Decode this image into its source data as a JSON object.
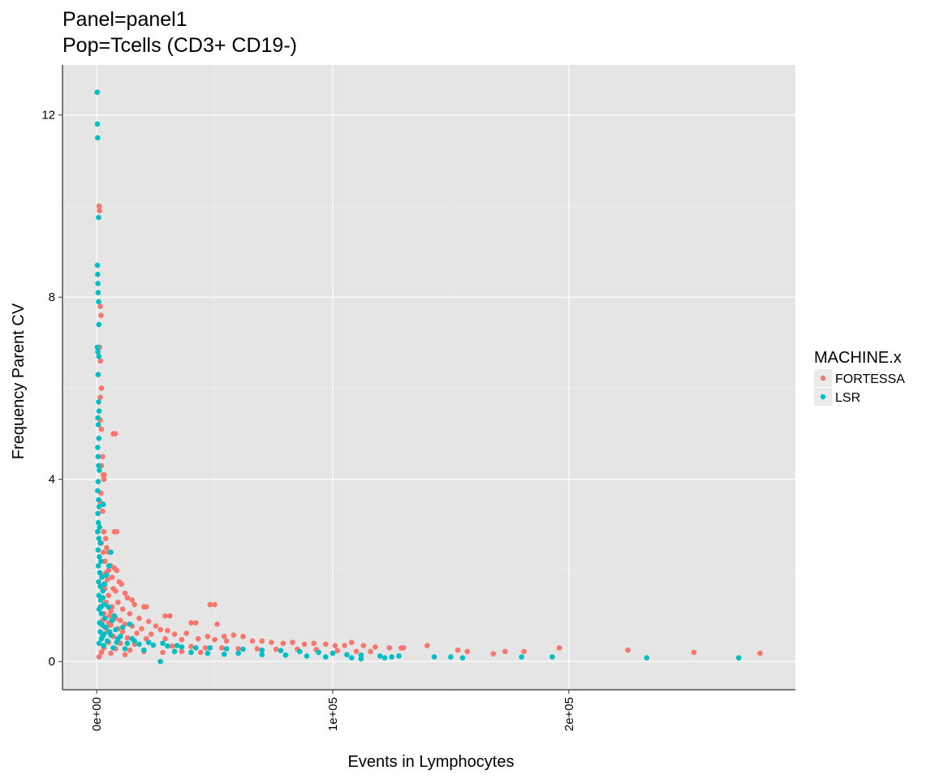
{
  "chart_data": {
    "type": "scatter",
    "title": [
      "Panel=panel1",
      "Pop=Tcells (CD3+ CD19-)"
    ],
    "xlabel": "Events in Lymphocytes",
    "ylabel": "Frequency Parent CV",
    "xlim": [
      -14500,
      296000
    ],
    "ylim": [
      -0.62,
      13.1
    ],
    "x_ticks": [
      0,
      100000,
      200000
    ],
    "x_tick_labels": [
      "0e+00",
      "1e+05",
      "2e+05"
    ],
    "y_ticks": [
      0,
      4,
      8,
      12
    ],
    "y_tick_labels": [
      "0",
      "4",
      "8",
      "12"
    ],
    "grid": true,
    "legend": {
      "title": "MACHINE.x",
      "placement": "right",
      "entries": [
        {
          "label": "FORTESSA",
          "color": "#F8766D"
        },
        {
          "label": "LSR",
          "color": "#00BFC4"
        }
      ]
    },
    "series": [
      {
        "name": "FORTESSA",
        "color": "#F8766D",
        "points": [
          [
            1000,
            10.0
          ],
          [
            1200,
            9.9
          ],
          [
            1500,
            7.8
          ],
          [
            1800,
            7.6
          ],
          [
            1200,
            6.9
          ],
          [
            1600,
            6.6
          ],
          [
            2000,
            6.0
          ],
          [
            1500,
            5.8
          ],
          [
            1500,
            5.3
          ],
          [
            2000,
            5.1
          ],
          [
            7000,
            5.0
          ],
          [
            7800,
            5.0
          ],
          [
            2500,
            4.5
          ],
          [
            2000,
            4.3
          ],
          [
            2800,
            4.1
          ],
          [
            3200,
            4.1
          ],
          [
            3000,
            4.0
          ],
          [
            1800,
            3.7
          ],
          [
            1500,
            3.5
          ],
          [
            2500,
            3.3
          ],
          [
            7500,
            2.85
          ],
          [
            8500,
            2.85
          ],
          [
            3000,
            2.85
          ],
          [
            3800,
            2.7
          ],
          [
            2000,
            2.6
          ],
          [
            4200,
            2.5
          ],
          [
            5000,
            2.4
          ],
          [
            3500,
            2.2
          ],
          [
            6000,
            2.1
          ],
          [
            7500,
            2.05
          ],
          [
            8500,
            2.0
          ],
          [
            5000,
            2.0
          ],
          [
            4000,
            1.95
          ],
          [
            6500,
            1.85
          ],
          [
            9500,
            1.75
          ],
          [
            10500,
            1.7
          ],
          [
            3000,
            1.7
          ],
          [
            7000,
            1.6
          ],
          [
            8000,
            1.55
          ],
          [
            12000,
            1.5
          ],
          [
            5000,
            1.45
          ],
          [
            13000,
            1.4
          ],
          [
            15000,
            1.35
          ],
          [
            4000,
            1.3
          ],
          [
            9000,
            1.3
          ],
          [
            16000,
            1.25
          ],
          [
            20000,
            1.2
          ],
          [
            21000,
            1.2
          ],
          [
            11000,
            1.15
          ],
          [
            6000,
            1.1
          ],
          [
            48000,
            1.25
          ],
          [
            50000,
            1.25
          ],
          [
            3000,
            1.05
          ],
          [
            14000,
            1.05
          ],
          [
            29000,
            1.0
          ],
          [
            31000,
            1.0
          ],
          [
            8000,
            0.95
          ],
          [
            18000,
            0.95
          ],
          [
            2500,
            0.9
          ],
          [
            10000,
            0.9
          ],
          [
            22000,
            0.88
          ],
          [
            5000,
            0.85
          ],
          [
            12000,
            0.82
          ],
          [
            40000,
            0.85
          ],
          [
            42000,
            0.85
          ],
          [
            51000,
            0.82
          ],
          [
            6000,
            0.8
          ],
          [
            15000,
            0.78
          ],
          [
            25000,
            0.78
          ],
          [
            3500,
            0.75
          ],
          [
            9000,
            0.72
          ],
          [
            19000,
            0.72
          ],
          [
            27000,
            0.7
          ],
          [
            30000,
            0.68
          ],
          [
            4500,
            0.65
          ],
          [
            11000,
            0.65
          ],
          [
            17000,
            0.62
          ],
          [
            23000,
            0.6
          ],
          [
            33000,
            0.6
          ],
          [
            38000,
            0.62
          ],
          [
            47000,
            0.55
          ],
          [
            54000,
            0.55
          ],
          [
            58000,
            0.58
          ],
          [
            62000,
            0.55
          ],
          [
            7000,
            0.55
          ],
          [
            13000,
            0.52
          ],
          [
            21000,
            0.5
          ],
          [
            29000,
            0.5
          ],
          [
            36000,
            0.48
          ],
          [
            43000,
            0.5
          ],
          [
            50000,
            0.48
          ],
          [
            55000,
            0.45
          ],
          [
            66000,
            0.45
          ],
          [
            70000,
            0.45
          ],
          [
            74000,
            0.42
          ],
          [
            79000,
            0.4
          ],
          [
            83000,
            0.42
          ],
          [
            88000,
            0.38
          ],
          [
            92000,
            0.4
          ],
          [
            97000,
            0.38
          ],
          [
            101000,
            0.35
          ],
          [
            105000,
            0.35
          ],
          [
            108000,
            0.42
          ],
          [
            113000,
            0.35
          ],
          [
            118000,
            0.32
          ],
          [
            124000,
            0.3
          ],
          [
            129000,
            0.3
          ],
          [
            130000,
            0.3
          ],
          [
            140000,
            0.35
          ],
          [
            153000,
            0.25
          ],
          [
            157000,
            0.22
          ],
          [
            168000,
            0.17
          ],
          [
            173000,
            0.22
          ],
          [
            181000,
            0.22
          ],
          [
            196000,
            0.3
          ],
          [
            225000,
            0.25
          ],
          [
            253000,
            0.2
          ],
          [
            281000,
            0.18
          ],
          [
            5000,
            0.42
          ],
          [
            10000,
            0.4
          ],
          [
            16000,
            0.38
          ],
          [
            24000,
            0.36
          ],
          [
            32000,
            0.34
          ],
          [
            40000,
            0.33
          ],
          [
            46000,
            0.3
          ],
          [
            53000,
            0.3
          ],
          [
            60000,
            0.28
          ],
          [
            68000,
            0.28
          ],
          [
            76000,
            0.27
          ],
          [
            85000,
            0.27
          ],
          [
            93000,
            0.26
          ],
          [
            102000,
            0.24
          ],
          [
            110000,
            0.22
          ],
          [
            116000,
            0.22
          ],
          [
            3000,
            0.3
          ],
          [
            8000,
            0.28
          ],
          [
            14000,
            0.25
          ],
          [
            20000,
            0.22
          ],
          [
            28000,
            0.2
          ],
          [
            36000,
            0.22
          ],
          [
            44000,
            0.2
          ],
          [
            1000,
            0.1
          ],
          [
            2000,
            0.2
          ],
          [
            6000,
            0.18
          ],
          [
            12000,
            0.15
          ],
          [
            1500,
            1.2
          ],
          [
            2500,
            1.4
          ],
          [
            3500,
            1.6
          ],
          [
            4500,
            1.8
          ],
          [
            5500,
            1.0
          ],
          [
            6500,
            1.2
          ],
          [
            1800,
            2.2
          ],
          [
            2800,
            2.4
          ],
          [
            3200,
            1.9
          ]
        ]
      },
      {
        "name": "LSR",
        "color": "#00BFC4",
        "points": [
          [
            200,
            12.5
          ],
          [
            300,
            11.8
          ],
          [
            400,
            11.5
          ],
          [
            800,
            9.75
          ],
          [
            300,
            8.7
          ],
          [
            400,
            8.5
          ],
          [
            500,
            8.3
          ],
          [
            600,
            8.1
          ],
          [
            800,
            7.9
          ],
          [
            900,
            7.4
          ],
          [
            300,
            6.9
          ],
          [
            500,
            6.8
          ],
          [
            900,
            6.7
          ],
          [
            600,
            6.3
          ],
          [
            800,
            5.7
          ],
          [
            1000,
            5.5
          ],
          [
            500,
            5.35
          ],
          [
            700,
            5.2
          ],
          [
            900,
            4.9
          ],
          [
            400,
            4.7
          ],
          [
            600,
            4.5
          ],
          [
            800,
            4.3
          ],
          [
            1100,
            4.2
          ],
          [
            600,
            3.95
          ],
          [
            400,
            3.75
          ],
          [
            800,
            3.55
          ],
          [
            1000,
            3.4
          ],
          [
            2800,
            3.45
          ],
          [
            500,
            3.25
          ],
          [
            700,
            3.05
          ],
          [
            1200,
            2.95
          ],
          [
            400,
            2.85
          ],
          [
            900,
            2.7
          ],
          [
            1500,
            2.6
          ],
          [
            600,
            2.45
          ],
          [
            1100,
            2.3
          ],
          [
            1800,
            2.2
          ],
          [
            700,
            2.1
          ],
          [
            1300,
            1.95
          ],
          [
            2200,
            1.85
          ],
          [
            800,
            1.75
          ],
          [
            1500,
            1.65
          ],
          [
            2600,
            1.55
          ],
          [
            900,
            1.45
          ],
          [
            1700,
            1.35
          ],
          [
            3000,
            1.25
          ],
          [
            5000,
            1.2
          ],
          [
            1000,
            1.15
          ],
          [
            2000,
            1.05
          ],
          [
            3500,
            0.95
          ],
          [
            6500,
            0.9
          ],
          [
            1200,
            0.85
          ],
          [
            2400,
            0.8
          ],
          [
            4000,
            0.75
          ],
          [
            8000,
            0.7
          ],
          [
            14000,
            0.82
          ],
          [
            1500,
            0.65
          ],
          [
            3000,
            0.6
          ],
          [
            6000,
            0.58
          ],
          [
            10000,
            0.55
          ],
          [
            15000,
            0.5
          ],
          [
            2000,
            0.5
          ],
          [
            4500,
            0.45
          ],
          [
            8500,
            0.42
          ],
          [
            13000,
            0.4
          ],
          [
            18000,
            0.38
          ],
          [
            24000,
            0.36
          ],
          [
            30000,
            0.34
          ],
          [
            36000,
            0.32
          ],
          [
            42000,
            0.3
          ],
          [
            48000,
            0.3
          ],
          [
            55000,
            0.28
          ],
          [
            62000,
            0.27
          ],
          [
            70000,
            0.25
          ],
          [
            78000,
            0.24
          ],
          [
            86000,
            0.22
          ],
          [
            94000,
            0.2
          ],
          [
            100000,
            0.18
          ],
          [
            106000,
            0.15
          ],
          [
            112000,
            0.14
          ],
          [
            120000,
            0.12
          ],
          [
            128000,
            0.12
          ],
          [
            143000,
            0.1
          ],
          [
            150000,
            0.1
          ],
          [
            155000,
            0.08
          ],
          [
            180000,
            0.1
          ],
          [
            193000,
            0.1
          ],
          [
            233000,
            0.08
          ],
          [
            272000,
            0.08
          ],
          [
            3000,
            0.35
          ],
          [
            7000,
            0.3
          ],
          [
            12000,
            0.28
          ],
          [
            20000,
            0.25
          ],
          [
            27000,
            0.0
          ],
          [
            33000,
            0.22
          ],
          [
            40000,
            0.2
          ],
          [
            47000,
            0.18
          ],
          [
            54000,
            0.16
          ],
          [
            60000,
            0.18
          ],
          [
            70000,
            0.15
          ],
          [
            80000,
            0.14
          ],
          [
            89000,
            0.12
          ],
          [
            97000,
            0.1
          ],
          [
            108000,
            0.08
          ],
          [
            112000,
            0.06
          ],
          [
            122000,
            0.08
          ],
          [
            125000,
            0.1
          ],
          [
            1000,
            0.4
          ],
          [
            2500,
            0.55
          ],
          [
            5500,
            0.65
          ],
          [
            9000,
            0.5
          ],
          [
            16000,
            0.45
          ],
          [
            22000,
            0.42
          ],
          [
            28000,
            0.4
          ],
          [
            34000,
            0.35
          ],
          [
            1800,
            1.2
          ],
          [
            2600,
            1.4
          ],
          [
            3400,
            1.7
          ],
          [
            4200,
            1.9
          ],
          [
            5200,
            2.1
          ],
          [
            6000,
            2.4
          ],
          [
            7500,
            1.0
          ],
          [
            11000,
            0.75
          ]
        ]
      }
    ]
  }
}
